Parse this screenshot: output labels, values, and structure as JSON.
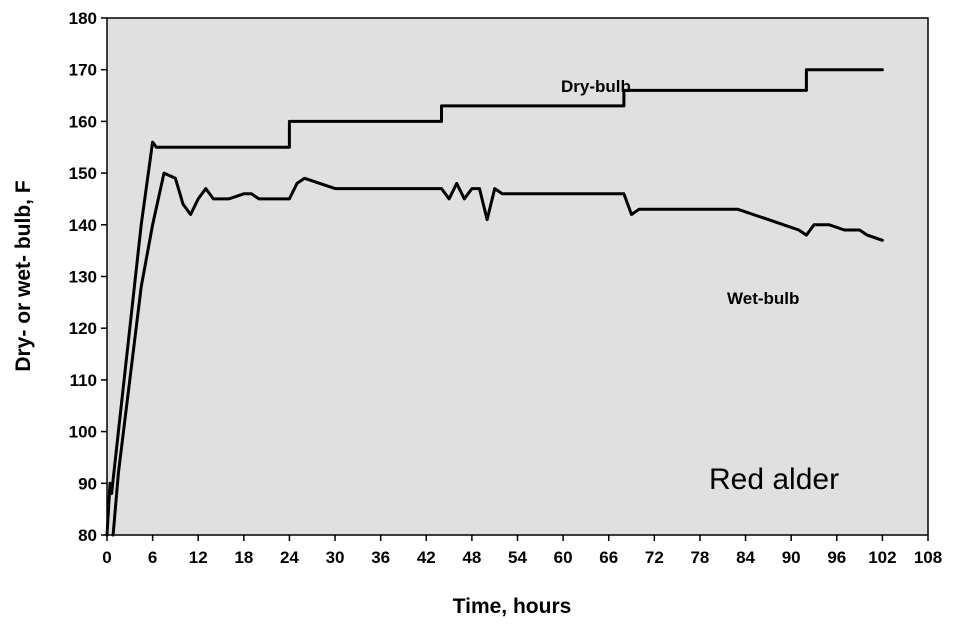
{
  "chart_data": {
    "type": "line",
    "title": "",
    "xlabel": "Time, hours",
    "ylabel": "Dry- or wet- bulb, F",
    "xlim": [
      0,
      108
    ],
    "ylim": [
      80,
      180
    ],
    "x_ticks": [
      0,
      6,
      12,
      18,
      24,
      30,
      36,
      42,
      48,
      54,
      60,
      66,
      72,
      78,
      84,
      90,
      96,
      102,
      108
    ],
    "y_ticks": [
      80,
      90,
      100,
      110,
      120,
      130,
      140,
      150,
      160,
      170,
      180
    ],
    "grid": false,
    "plot_background": "#e0e0e0",
    "line_color": "#000000",
    "annotation": "Red alder",
    "series": [
      {
        "name": "Dry-bulb",
        "x": [
          0,
          0.4,
          0.6,
          1.5,
          3,
          4.5,
          6,
          6.5,
          8,
          24,
          24,
          44,
          44,
          68,
          68,
          92,
          92,
          102
        ],
        "y": [
          80,
          90,
          88,
          100,
          120,
          140,
          156,
          155,
          155,
          155,
          160,
          160,
          163,
          163,
          166,
          166,
          170,
          170
        ]
      },
      {
        "name": "Wet-bulb",
        "x": [
          0.8,
          1.5,
          3,
          4.5,
          6,
          7.5,
          9,
          10,
          11,
          12,
          13,
          14,
          16,
          18,
          19,
          20,
          22,
          24,
          25,
          26,
          28,
          30,
          32,
          34,
          36,
          40,
          44,
          45,
          46,
          47,
          48,
          49,
          50,
          51,
          52,
          60,
          68,
          69,
          70,
          80,
          83,
          85,
          87,
          89,
          91,
          92,
          93,
          95,
          97,
          99,
          100,
          102
        ],
        "y": [
          80,
          92,
          110,
          128,
          140,
          150,
          149,
          144,
          142,
          145,
          147,
          145,
          145,
          146,
          146,
          145,
          145,
          145,
          148,
          149,
          148,
          147,
          147,
          147,
          147,
          147,
          147,
          145,
          148,
          145,
          147,
          147,
          141,
          147,
          146,
          146,
          146,
          142,
          143,
          143,
          143,
          142,
          141,
          140,
          139,
          138,
          140,
          140,
          139,
          139,
          138,
          137
        ]
      }
    ]
  }
}
